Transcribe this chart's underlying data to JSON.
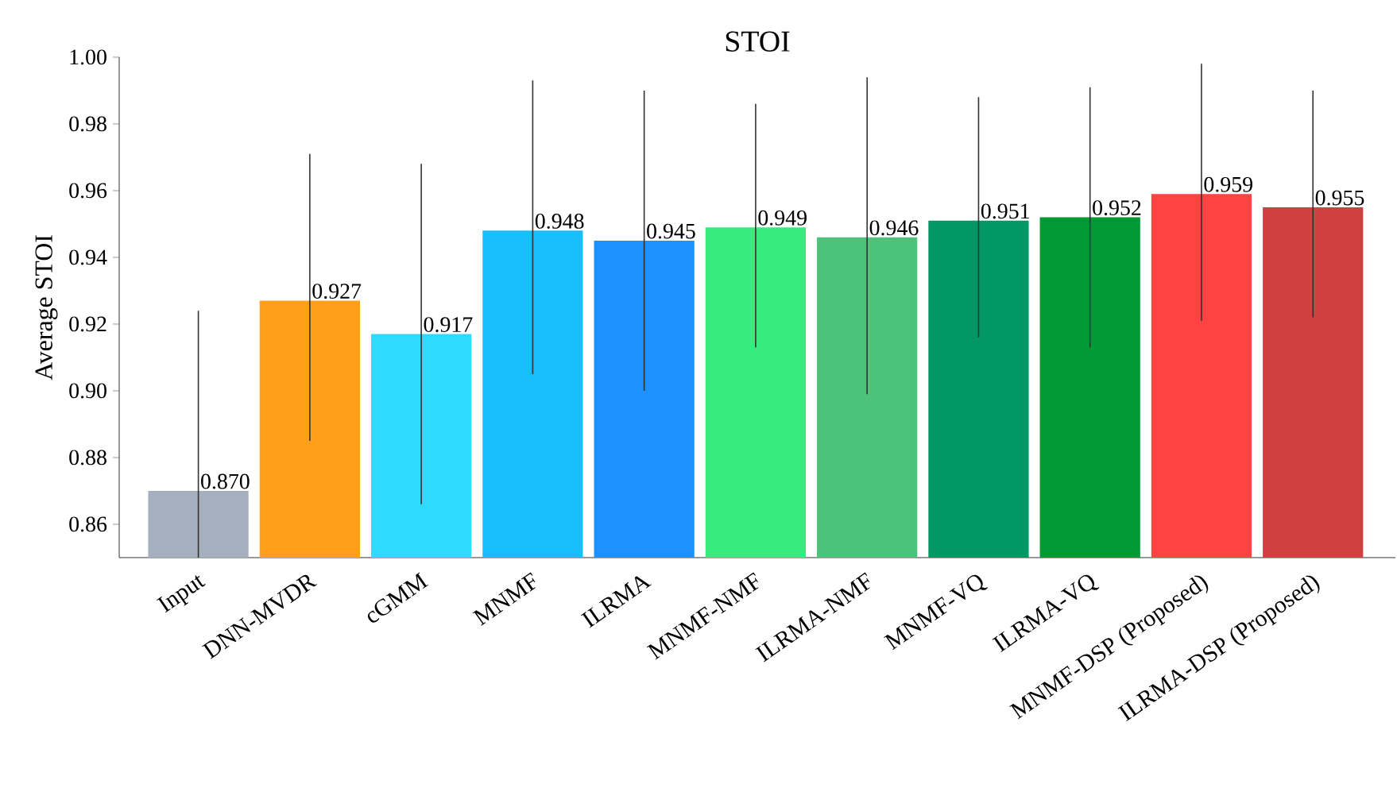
{
  "chart_data": {
    "type": "bar",
    "title": "STOI",
    "ylabel": "Average STOI",
    "categories": [
      "Input",
      "DNN-MVDR",
      "cGMM",
      "MNMF",
      "ILRMA",
      "MNMF-NMF",
      "ILRMA-NMF",
      "MNMF-VQ",
      "ILRMA-VQ",
      "MNMF-DSP (Proposed)",
      "ILRMA-DSP (Proposed)"
    ],
    "values": [
      0.87,
      0.927,
      0.917,
      0.948,
      0.945,
      0.949,
      0.946,
      0.951,
      0.952,
      0.959,
      0.955
    ],
    "value_labels": [
      "0.870",
      "0.927",
      "0.917",
      "0.948",
      "0.945",
      "0.949",
      "0.946",
      "0.951",
      "0.952",
      "0.959",
      "0.955"
    ],
    "colors": [
      "#a4b0be",
      "#ff9f1a",
      "#2edbff",
      "#18bdf9",
      "#1e90ff",
      "#36ec7f",
      "#4cc27a",
      "#019866",
      "#009933",
      "#ff4242",
      "#d04040"
    ],
    "errors": [
      [
        0.85,
        0.924
      ],
      [
        0.885,
        0.971
      ],
      [
        0.866,
        0.968
      ],
      [
        0.905,
        0.993
      ],
      [
        0.9,
        0.99
      ],
      [
        0.913,
        0.986
      ],
      [
        0.899,
        0.994
      ],
      [
        0.916,
        0.988
      ],
      [
        0.913,
        0.991
      ],
      [
        0.921,
        0.998
      ],
      [
        0.922,
        0.99
      ]
    ],
    "ylim": [
      0.85,
      1.0
    ],
    "yticks": [
      {
        "value": 0.86,
        "label": "0.86"
      },
      {
        "value": 0.88,
        "label": "0.88"
      },
      {
        "value": 0.9,
        "label": "0.90"
      },
      {
        "value": 0.92,
        "label": "0.92"
      },
      {
        "value": 0.94,
        "label": "0.94"
      },
      {
        "value": 0.96,
        "label": "0.96"
      },
      {
        "value": 0.98,
        "label": "0.98"
      },
      {
        "value": 1.0,
        "label": "1.00"
      }
    ]
  }
}
